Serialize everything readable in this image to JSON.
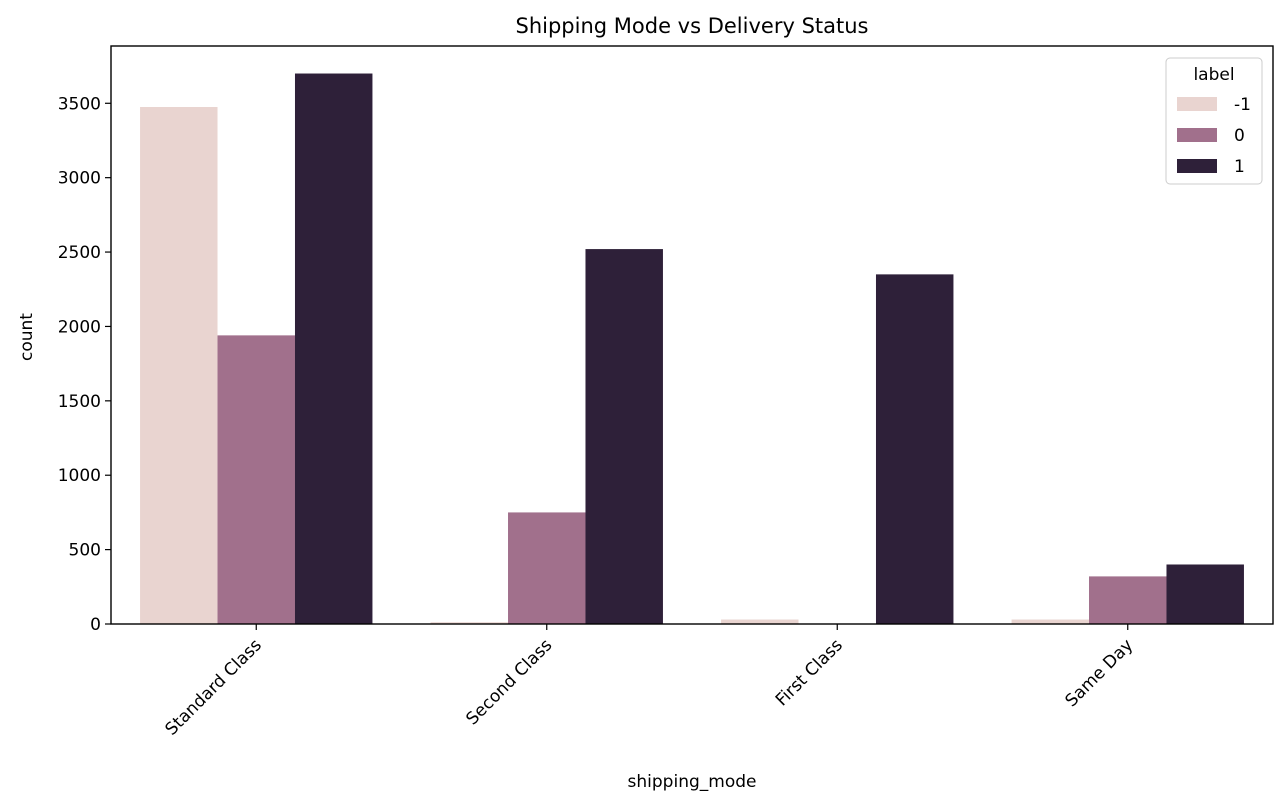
{
  "chart_data": {
    "type": "bar",
    "title": "Shipping Mode vs Delivery Status",
    "xlabel": "shipping_mode",
    "ylabel": "count",
    "categories": [
      "Standard Class",
      "Second Class",
      "First Class",
      "Same Day"
    ],
    "series": [
      {
        "name": "-1",
        "color": "#e9d4d0",
        "values": [
          3475,
          12,
          30,
          30
        ]
      },
      {
        "name": "0",
        "color": "#a1708c",
        "values": [
          1940,
          750,
          0,
          320
        ]
      },
      {
        "name": "1",
        "color": "#2e2039",
        "values": [
          3700,
          2520,
          2350,
          400
        ]
      }
    ],
    "ylim": [
      0,
      3885
    ],
    "yticks": [
      0,
      500,
      1000,
      1500,
      2000,
      2500,
      3000,
      3500
    ],
    "legend": {
      "title": "label",
      "placement": "top-right"
    },
    "grid": false
  }
}
